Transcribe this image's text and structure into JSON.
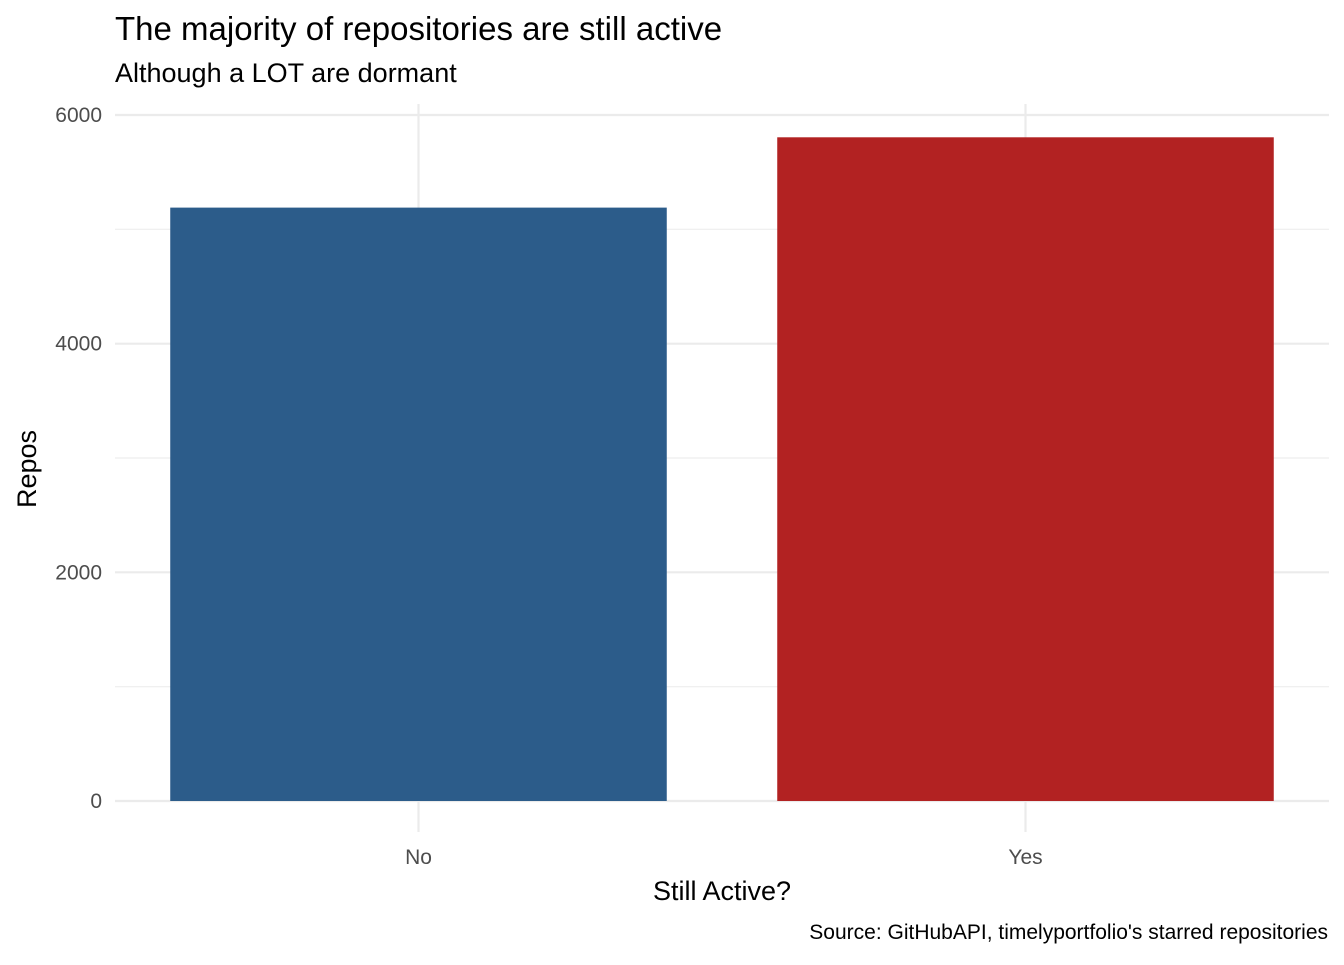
{
  "chart_data": {
    "type": "bar",
    "title": "The majority of repositories are still active",
    "subtitle": "Although a LOT are dormant",
    "xlabel": "Still Active?",
    "ylabel": "Repos",
    "caption": "Source: GitHubAPI, timelyportfolio's starred repositories",
    "categories": [
      "No",
      "Yes"
    ],
    "values": [
      5190,
      5805
    ],
    "colors": [
      "#2C5C8A",
      "#B22222"
    ],
    "ylim": [
      0,
      6000
    ],
    "yticks": [
      0,
      2000,
      4000,
      6000
    ],
    "ytick_labels": [
      "0",
      "2000",
      "4000",
      "6000"
    ],
    "grid": true,
    "legend": "none"
  }
}
